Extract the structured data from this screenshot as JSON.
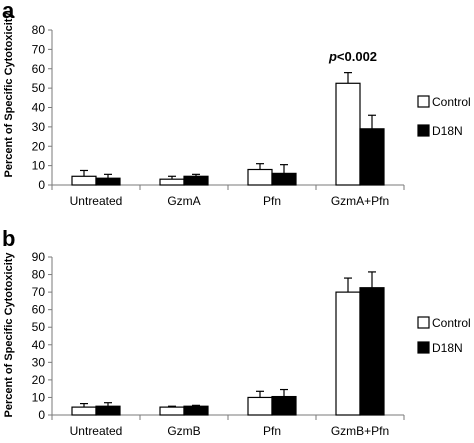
{
  "chart_data": [
    {
      "panel": "a",
      "type": "bar",
      "ylabel": "Percent of Specific Cytotoxicity",
      "ylim": [
        0,
        80
      ],
      "yticks": [
        0,
        10,
        20,
        30,
        40,
        50,
        60,
        70,
        80
      ],
      "categories": [
        "Untreated",
        "GzmA",
        "Pfn",
        "GzmA+Pfn"
      ],
      "series": [
        {
          "name": "Control",
          "color": "#ffffff",
          "values": [
            4.5,
            3,
            8,
            52.5
          ],
          "errors": [
            3,
            1.5,
            3,
            5.5
          ]
        },
        {
          "name": "D18N",
          "color": "#000000",
          "values": [
            3.5,
            4.5,
            6,
            29
          ],
          "errors": [
            2,
            1,
            4.5,
            7
          ]
        }
      ],
      "annotation": {
        "text_italic": "p",
        "text": "<0.002",
        "category": "GzmA+Pfn"
      },
      "legend_position": "right"
    },
    {
      "panel": "b",
      "type": "bar",
      "ylabel": "Percent of Specific Cytotoxicity",
      "ylim": [
        0,
        90
      ],
      "yticks": [
        0,
        10,
        20,
        30,
        40,
        50,
        60,
        70,
        80,
        90
      ],
      "categories": [
        "Untreated",
        "GzmB",
        "Pfn",
        "GzmB+Pfn"
      ],
      "series": [
        {
          "name": "Control",
          "color": "#ffffff",
          "values": [
            4.5,
            4.5,
            10,
            70
          ],
          "errors": [
            2,
            0.5,
            3.5,
            8
          ]
        },
        {
          "name": "D18N",
          "color": "#000000",
          "values": [
            5,
            5,
            10.5,
            72.5
          ],
          "errors": [
            2,
            0.5,
            4,
            9
          ]
        }
      ],
      "legend_position": "right"
    }
  ]
}
